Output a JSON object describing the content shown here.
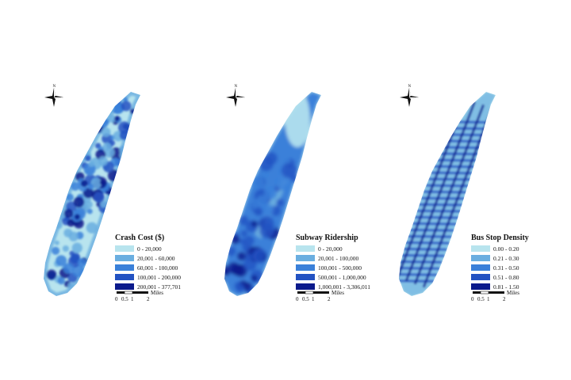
{
  "north_label": "N",
  "palette": [
    "#b8e4ee",
    "#6aaee0",
    "#3a80d9",
    "#2352c2",
    "#0b1a8c"
  ],
  "panels": [
    {
      "id": "crash",
      "legend": {
        "title": "Crash Cost ($)",
        "classes": [
          "0 - 20,000",
          "20,001 - 60,000",
          "60,001 - 100,000",
          "100,001 - 200,000",
          "200,001 - 377,701"
        ]
      },
      "scale": {
        "ticks": [
          "0",
          "0.5",
          "1",
          "2"
        ],
        "unit": "Miles"
      }
    },
    {
      "id": "subway",
      "legend": {
        "title": "Subway Ridership",
        "classes": [
          "0 - 20,000",
          "20,001 - 100,000",
          "100,001 - 500,000",
          "500,001 - 1,000,000",
          "1,000,001 - 3,306,011"
        ]
      },
      "scale": {
        "ticks": [
          "0",
          "0.5",
          "1",
          "2"
        ],
        "unit": "Miles"
      }
    },
    {
      "id": "busstop",
      "legend": {
        "title": "Bus Stop Density",
        "classes": [
          "0.00 - 0.20",
          "0.21 - 0.30",
          "0.31 - 0.50",
          "0.51 - 0.80",
          "0.81 - 1.50"
        ]
      },
      "scale": {
        "ticks": [
          "0",
          "0.5",
          "1",
          "2"
        ],
        "unit": "Miles"
      }
    }
  ]
}
